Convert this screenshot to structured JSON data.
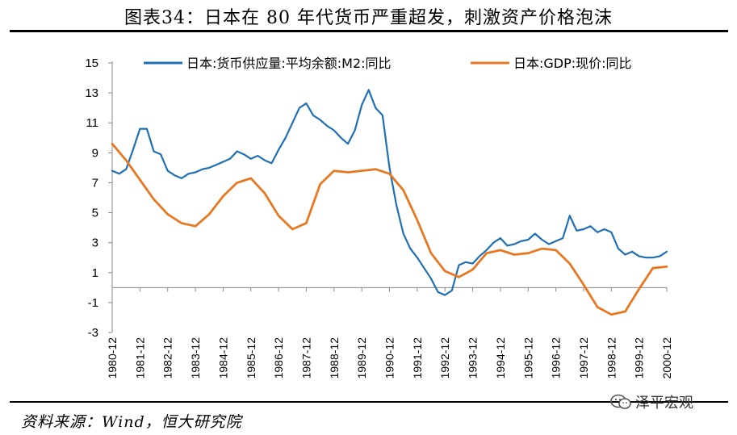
{
  "header": {
    "title": "图表34：日本在 80 年代货币严重超发，刺激资产价格泡沫"
  },
  "footer": {
    "source": "资料来源：Wind，恒大研究院",
    "watermark": "泽平宏观",
    "watermark_icon": "wechat-icon"
  },
  "chart_data": {
    "type": "line",
    "title": "",
    "xlabel": "",
    "ylabel": "",
    "ylim": [
      -3,
      15
    ],
    "yticks": [
      15,
      13,
      11,
      9,
      7,
      5,
      3,
      1,
      -1,
      -3
    ],
    "x_start": "1980-12",
    "x_end": "2000-12",
    "xtick_labels": [
      "1980-12",
      "1981-12",
      "1982-12",
      "1983-12",
      "1984-12",
      "1985-12",
      "1986-12",
      "1987-12",
      "1988-12",
      "1989-12",
      "1990-12",
      "1991-12",
      "1992-12",
      "1993-12",
      "1994-12",
      "1995-12",
      "1996-12",
      "1997-12",
      "1998-12",
      "1999-12",
      "2000-12"
    ],
    "grid": false,
    "legend_position": "top",
    "series": [
      {
        "name": "日本:货币供应量:平均余额:M2:同比",
        "color": "#1f6fb5",
        "points": [
          [
            "1980-12",
            7.8
          ],
          [
            "1981-03",
            7.6
          ],
          [
            "1981-06",
            7.9
          ],
          [
            "1981-09",
            9.2
          ],
          [
            "1981-12",
            10.6
          ],
          [
            "1982-03",
            10.6
          ],
          [
            "1982-06",
            9.1
          ],
          [
            "1982-09",
            8.9
          ],
          [
            "1982-12",
            7.8
          ],
          [
            "1983-03",
            7.5
          ],
          [
            "1983-06",
            7.3
          ],
          [
            "1983-09",
            7.6
          ],
          [
            "1983-12",
            7.7
          ],
          [
            "1984-03",
            7.9
          ],
          [
            "1984-06",
            8.0
          ],
          [
            "1984-09",
            8.2
          ],
          [
            "1984-12",
            8.4
          ],
          [
            "1985-03",
            8.6
          ],
          [
            "1985-06",
            9.1
          ],
          [
            "1985-09",
            8.9
          ],
          [
            "1985-12",
            8.6
          ],
          [
            "1986-03",
            8.8
          ],
          [
            "1986-06",
            8.5
          ],
          [
            "1986-09",
            8.3
          ],
          [
            "1986-12",
            9.2
          ],
          [
            "1987-03",
            10.0
          ],
          [
            "1987-06",
            11.0
          ],
          [
            "1987-09",
            12.0
          ],
          [
            "1987-12",
            12.3
          ],
          [
            "1988-03",
            11.5
          ],
          [
            "1988-06",
            11.2
          ],
          [
            "1988-09",
            10.8
          ],
          [
            "1988-12",
            10.5
          ],
          [
            "1989-03",
            10.0
          ],
          [
            "1989-06",
            9.6
          ],
          [
            "1989-09",
            10.5
          ],
          [
            "1989-12",
            12.2
          ],
          [
            "1990-03",
            13.2
          ],
          [
            "1990-06",
            12.0
          ],
          [
            "1990-09",
            11.5
          ],
          [
            "1990-12",
            8.0
          ],
          [
            "1991-03",
            5.5
          ],
          [
            "1991-06",
            3.6
          ],
          [
            "1991-09",
            2.6
          ],
          [
            "1991-12",
            2.0
          ],
          [
            "1992-03",
            1.3
          ],
          [
            "1992-06",
            0.6
          ],
          [
            "1992-09",
            -0.3
          ],
          [
            "1992-12",
            -0.5
          ],
          [
            "1993-03",
            -0.2
          ],
          [
            "1993-06",
            1.5
          ],
          [
            "1993-09",
            1.7
          ],
          [
            "1993-12",
            1.6
          ],
          [
            "1994-03",
            2.1
          ],
          [
            "1994-06",
            2.5
          ],
          [
            "1994-09",
            3.0
          ],
          [
            "1994-12",
            3.3
          ],
          [
            "1995-03",
            2.8
          ],
          [
            "1995-06",
            2.9
          ],
          [
            "1995-09",
            3.1
          ],
          [
            "1995-12",
            3.2
          ],
          [
            "1996-03",
            3.6
          ],
          [
            "1996-06",
            3.2
          ],
          [
            "1996-09",
            2.9
          ],
          [
            "1996-12",
            3.1
          ],
          [
            "1997-03",
            3.3
          ],
          [
            "1997-06",
            4.8
          ],
          [
            "1997-09",
            3.8
          ],
          [
            "1997-12",
            3.9
          ],
          [
            "1998-03",
            4.1
          ],
          [
            "1998-06",
            3.7
          ],
          [
            "1998-09",
            3.9
          ],
          [
            "1998-12",
            3.7
          ],
          [
            "1999-03",
            2.6
          ],
          [
            "1999-06",
            2.2
          ],
          [
            "1999-09",
            2.4
          ],
          [
            "1999-12",
            2.1
          ],
          [
            "2000-03",
            2.0
          ],
          [
            "2000-06",
            2.0
          ],
          [
            "2000-09",
            2.1
          ],
          [
            "2000-12",
            2.4
          ]
        ]
      },
      {
        "name": "日本:GDP:现价:同比",
        "color": "#e87722",
        "points": [
          [
            "1980-12",
            9.6
          ],
          [
            "1981-06",
            8.5
          ],
          [
            "1981-12",
            7.2
          ],
          [
            "1982-06",
            5.9
          ],
          [
            "1982-12",
            4.9
          ],
          [
            "1983-06",
            4.3
          ],
          [
            "1983-12",
            4.1
          ],
          [
            "1984-06",
            4.9
          ],
          [
            "1984-12",
            6.1
          ],
          [
            "1985-06",
            7.0
          ],
          [
            "1985-12",
            7.3
          ],
          [
            "1986-06",
            6.3
          ],
          [
            "1986-12",
            4.8
          ],
          [
            "1987-06",
            3.9
          ],
          [
            "1987-12",
            4.3
          ],
          [
            "1988-06",
            6.9
          ],
          [
            "1988-12",
            7.8
          ],
          [
            "1989-06",
            7.7
          ],
          [
            "1989-12",
            7.8
          ],
          [
            "1990-06",
            7.9
          ],
          [
            "1990-12",
            7.6
          ],
          [
            "1991-06",
            6.5
          ],
          [
            "1991-12",
            4.5
          ],
          [
            "1992-06",
            2.3
          ],
          [
            "1992-12",
            1.1
          ],
          [
            "1993-06",
            0.7
          ],
          [
            "1993-12",
            1.2
          ],
          [
            "1994-06",
            2.3
          ],
          [
            "1994-12",
            2.5
          ],
          [
            "1995-06",
            2.2
          ],
          [
            "1995-12",
            2.3
          ],
          [
            "1996-06",
            2.6
          ],
          [
            "1996-12",
            2.5
          ],
          [
            "1997-06",
            1.6
          ],
          [
            "1997-12",
            0.2
          ],
          [
            "1998-06",
            -1.3
          ],
          [
            "1998-12",
            -1.8
          ],
          [
            "1999-06",
            -1.6
          ],
          [
            "1999-12",
            -0.1
          ],
          [
            "2000-06",
            1.3
          ],
          [
            "2000-12",
            1.4
          ]
        ]
      }
    ]
  }
}
